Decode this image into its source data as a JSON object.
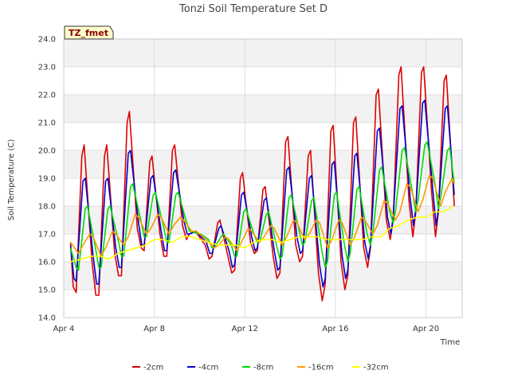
{
  "chart_data": {
    "type": "line",
    "title": "Tonzi Soil Temperature Set D",
    "xlabel": "Time",
    "ylabel": "Soil Temperature (C)",
    "site_badge": "TZ_fmet",
    "xlim": [
      4.0,
      21.6
    ],
    "ylim": [
      14.0,
      24.0
    ],
    "x_ticks": [
      {
        "value": 4,
        "label": "Apr 4"
      },
      {
        "value": 8,
        "label": "Apr 8"
      },
      {
        "value": 12,
        "label": "Apr 12"
      },
      {
        "value": 16,
        "label": "Apr 16"
      },
      {
        "value": 20,
        "label": "Apr 20"
      }
    ],
    "y_ticks": [
      {
        "value": 14,
        "label": "14.0"
      },
      {
        "value": 15,
        "label": "15.0"
      },
      {
        "value": 16,
        "label": "16.0"
      },
      {
        "value": 17,
        "label": "17.0"
      },
      {
        "value": 18,
        "label": "18.0"
      },
      {
        "value": 19,
        "label": "19.0"
      },
      {
        "value": 20,
        "label": "20.0"
      },
      {
        "value": 21,
        "label": "21.0"
      },
      {
        "value": 22,
        "label": "22.0"
      },
      {
        "value": 23,
        "label": "23.0"
      },
      {
        "value": 24,
        "label": "24.0"
      }
    ],
    "grid": true,
    "legend_position": "bottom",
    "series": [
      {
        "name": "-2cm",
        "color": "#dd0000",
        "x": [
          4.3,
          4.42,
          4.55,
          4.8,
          4.9,
          5.25,
          5.42,
          5.55,
          5.8,
          5.9,
          6.25,
          6.42,
          6.55,
          6.8,
          6.9,
          7.25,
          7.42,
          7.55,
          7.8,
          7.9,
          8.25,
          8.42,
          8.55,
          8.8,
          8.9,
          9.25,
          9.42,
          9.55,
          9.8,
          9.9,
          10.25,
          10.42,
          10.55,
          10.8,
          10.9,
          11.25,
          11.42,
          11.55,
          11.8,
          11.9,
          12.25,
          12.42,
          12.55,
          12.8,
          12.9,
          13.25,
          13.42,
          13.55,
          13.8,
          13.9,
          14.25,
          14.42,
          14.55,
          14.8,
          14.9,
          15.25,
          15.42,
          15.55,
          15.8,
          15.9,
          16.25,
          16.42,
          16.55,
          16.8,
          16.9,
          17.25,
          17.42,
          17.55,
          17.8,
          17.9,
          18.25,
          18.42,
          18.55,
          18.8,
          18.9,
          19.25,
          19.42,
          19.55,
          19.8,
          19.9,
          20.25,
          20.42,
          20.55,
          20.8,
          20.9,
          21.25
        ],
        "y": [
          16.7,
          15.1,
          14.9,
          19.8,
          20.2,
          16.0,
          14.8,
          14.8,
          19.8,
          20.2,
          16.3,
          15.5,
          15.5,
          21.0,
          21.4,
          17.2,
          16.5,
          16.4,
          19.6,
          19.8,
          17.0,
          16.2,
          16.2,
          20.0,
          20.2,
          17.3,
          16.8,
          17.0,
          17.1,
          17.0,
          16.6,
          16.1,
          16.2,
          17.4,
          17.5,
          16.2,
          15.6,
          15.7,
          19.0,
          19.2,
          16.7,
          16.3,
          16.4,
          18.6,
          18.7,
          16.2,
          15.4,
          15.6,
          20.3,
          20.5,
          16.6,
          16.0,
          16.2,
          19.8,
          20.0,
          15.6,
          14.6,
          15.2,
          20.7,
          20.9,
          16.0,
          15.0,
          15.5,
          21.0,
          21.2,
          16.5,
          15.8,
          16.5,
          22.0,
          22.2,
          17.5,
          16.8,
          17.5,
          22.7,
          23.0,
          18.2,
          16.9,
          17.8,
          22.8,
          23.0,
          18.5,
          16.9,
          17.8,
          22.5,
          22.7,
          18.0
        ]
      },
      {
        "name": "-4cm",
        "color": "#0000cc",
        "x": [
          4.3,
          4.45,
          4.55,
          4.85,
          4.95,
          5.3,
          5.45,
          5.55,
          5.85,
          5.95,
          6.3,
          6.45,
          6.55,
          6.85,
          6.95,
          7.3,
          7.45,
          7.55,
          7.85,
          7.95,
          8.3,
          8.45,
          8.55,
          8.85,
          8.95,
          9.3,
          9.45,
          9.55,
          9.85,
          9.95,
          10.3,
          10.45,
          10.55,
          10.85,
          10.95,
          11.3,
          11.45,
          11.55,
          11.85,
          11.95,
          12.3,
          12.45,
          12.55,
          12.85,
          12.95,
          13.3,
          13.45,
          13.55,
          13.85,
          13.95,
          14.3,
          14.45,
          14.55,
          14.85,
          14.95,
          15.3,
          15.45,
          15.55,
          15.85,
          15.95,
          16.3,
          16.45,
          16.55,
          16.85,
          16.95,
          17.3,
          17.45,
          17.55,
          17.85,
          17.95,
          18.3,
          18.45,
          18.55,
          18.85,
          18.95,
          19.3,
          19.45,
          19.55,
          19.85,
          19.95,
          20.3,
          20.45,
          20.55,
          20.85,
          20.95,
          21.25
        ],
        "y": [
          16.6,
          15.4,
          15.3,
          18.9,
          19.0,
          16.2,
          15.2,
          15.2,
          18.9,
          19.0,
          16.5,
          15.8,
          15.8,
          19.9,
          20.0,
          17.4,
          16.6,
          16.6,
          19.0,
          19.1,
          17.1,
          16.4,
          16.4,
          19.2,
          19.3,
          17.5,
          17.0,
          17.0,
          17.1,
          17.0,
          16.7,
          16.3,
          16.3,
          17.2,
          17.3,
          16.4,
          15.8,
          15.9,
          18.4,
          18.5,
          16.9,
          16.4,
          16.5,
          18.2,
          18.3,
          16.4,
          15.7,
          15.8,
          19.3,
          19.4,
          16.9,
          16.3,
          16.4,
          19.0,
          19.1,
          15.9,
          15.1,
          15.4,
          19.5,
          19.6,
          16.2,
          15.4,
          15.7,
          19.8,
          19.9,
          16.7,
          16.1,
          16.6,
          20.7,
          20.8,
          17.6,
          17.0,
          17.6,
          21.5,
          21.6,
          18.3,
          17.3,
          17.9,
          21.7,
          21.8,
          18.6,
          17.3,
          17.9,
          21.5,
          21.6,
          18.4
        ]
      },
      {
        "name": "-8cm",
        "color": "#00dd00",
        "x": [
          4.3,
          4.55,
          4.65,
          4.95,
          5.05,
          5.4,
          5.55,
          5.65,
          5.95,
          6.05,
          6.4,
          6.55,
          6.65,
          6.95,
          7.05,
          7.4,
          7.55,
          7.65,
          7.95,
          8.05,
          8.4,
          8.55,
          8.65,
          8.95,
          9.05,
          9.4,
          9.55,
          9.65,
          9.95,
          10.05,
          10.4,
          10.55,
          10.65,
          10.95,
          11.05,
          11.4,
          11.55,
          11.65,
          11.95,
          12.05,
          12.4,
          12.55,
          12.65,
          12.95,
          13.05,
          13.4,
          13.55,
          13.65,
          13.95,
          14.05,
          14.4,
          14.55,
          14.65,
          14.95,
          15.05,
          15.4,
          15.55,
          15.65,
          15.95,
          16.05,
          16.4,
          16.55,
          16.65,
          16.95,
          17.05,
          17.4,
          17.55,
          17.65,
          17.95,
          18.05,
          18.4,
          18.55,
          18.65,
          18.95,
          19.05,
          19.4,
          19.55,
          19.65,
          19.95,
          20.05,
          20.4,
          20.55,
          20.65,
          20.95,
          21.05,
          21.25
        ],
        "y": [
          16.5,
          15.8,
          15.7,
          17.9,
          18.0,
          16.5,
          15.8,
          15.8,
          17.9,
          18.0,
          16.8,
          16.2,
          16.2,
          18.7,
          18.8,
          17.5,
          16.9,
          16.9,
          18.4,
          18.5,
          17.3,
          16.7,
          16.7,
          18.4,
          18.5,
          17.5,
          17.1,
          17.1,
          17.0,
          17.0,
          16.8,
          16.5,
          16.5,
          16.9,
          17.0,
          16.6,
          16.2,
          16.2,
          17.8,
          17.9,
          17.0,
          16.7,
          16.7,
          17.7,
          17.8,
          16.6,
          16.1,
          16.2,
          18.3,
          18.4,
          17.1,
          16.6,
          16.7,
          18.2,
          18.3,
          16.4,
          15.8,
          16.0,
          18.4,
          18.5,
          16.6,
          16.0,
          16.3,
          18.6,
          18.7,
          17.0,
          16.6,
          17.0,
          19.3,
          19.4,
          17.8,
          17.4,
          17.8,
          20.0,
          20.1,
          18.5,
          17.8,
          18.2,
          20.2,
          20.3,
          18.8,
          17.9,
          18.3,
          20.0,
          20.1,
          18.8
        ]
      },
      {
        "name": "-16cm",
        "color": "#ff9900",
        "x": [
          4.3,
          4.65,
          4.85,
          5.15,
          5.3,
          5.65,
          5.85,
          6.15,
          6.3,
          6.65,
          6.85,
          7.15,
          7.3,
          7.65,
          7.85,
          8.15,
          8.3,
          8.65,
          8.85,
          9.15,
          9.3,
          9.65,
          9.85,
          10.15,
          10.3,
          10.65,
          10.85,
          11.15,
          11.3,
          11.65,
          11.85,
          12.15,
          12.3,
          12.65,
          12.85,
          13.15,
          13.3,
          13.65,
          13.85,
          14.15,
          14.3,
          14.65,
          14.85,
          15.15,
          15.3,
          15.65,
          15.85,
          16.15,
          16.3,
          16.65,
          16.85,
          17.15,
          17.3,
          17.65,
          17.85,
          18.15,
          18.3,
          18.65,
          18.85,
          19.15,
          19.3,
          19.65,
          19.85,
          20.15,
          20.3,
          20.65,
          20.85,
          21.15,
          21.25
        ],
        "y": [
          16.7,
          16.3,
          16.6,
          17.0,
          16.9,
          16.2,
          16.5,
          17.1,
          17.0,
          16.6,
          16.9,
          17.7,
          17.6,
          17.0,
          17.2,
          17.7,
          17.6,
          17.0,
          17.3,
          17.6,
          17.5,
          17.1,
          17.1,
          16.9,
          16.8,
          16.5,
          16.6,
          16.9,
          16.8,
          16.4,
          16.7,
          17.2,
          17.1,
          16.7,
          16.9,
          17.3,
          17.2,
          16.6,
          16.9,
          17.5,
          17.4,
          16.8,
          17.0,
          17.5,
          17.4,
          16.5,
          16.8,
          17.5,
          17.4,
          16.6,
          16.9,
          17.6,
          17.5,
          17.0,
          17.3,
          18.2,
          18.1,
          17.5,
          17.8,
          18.8,
          18.7,
          17.8,
          18.2,
          19.1,
          19.0,
          18.0,
          18.5,
          19.0,
          18.8
        ]
      },
      {
        "name": "-32cm",
        "color": "#ffff00",
        "x": [
          4.3,
          4.8,
          5.2,
          5.6,
          6.0,
          6.4,
          6.8,
          7.2,
          7.6,
          8.0,
          8.4,
          8.8,
          9.2,
          9.6,
          10.0,
          10.4,
          10.8,
          11.2,
          11.6,
          12.0,
          12.4,
          12.8,
          13.2,
          13.6,
          14.0,
          14.4,
          14.8,
          15.2,
          15.6,
          16.0,
          16.4,
          16.8,
          17.2,
          17.6,
          18.0,
          18.4,
          18.8,
          19.2,
          19.6,
          20.0,
          20.4,
          20.8,
          21.2
        ],
        "y": [
          16.0,
          16.1,
          16.2,
          16.2,
          16.1,
          16.3,
          16.4,
          16.5,
          16.6,
          16.8,
          16.8,
          16.7,
          16.9,
          16.9,
          16.8,
          16.7,
          16.6,
          16.6,
          16.6,
          16.5,
          16.7,
          16.8,
          16.8,
          16.7,
          16.8,
          16.9,
          16.9,
          16.9,
          16.8,
          16.8,
          16.8,
          16.8,
          16.8,
          16.9,
          16.9,
          17.2,
          17.3,
          17.5,
          17.6,
          17.6,
          17.8,
          17.8,
          18.0
        ]
      }
    ]
  }
}
